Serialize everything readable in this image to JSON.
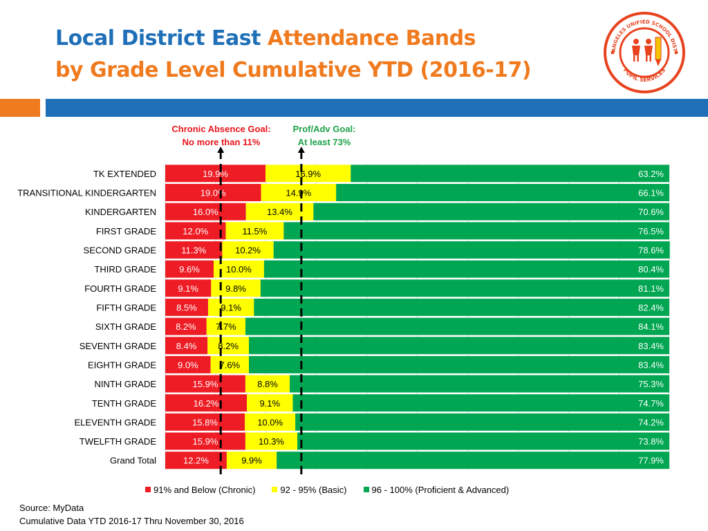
{
  "header": {
    "title_blue": "Local District East",
    "title_orange": "Attendance Bands",
    "subtitle": "by Grade Level Cumulative YTD (2016-17)"
  },
  "logo": {
    "text_top": "LOS ANGELES UNIFIED SCHOOL DISTRICT",
    "text_bottom": "PUPIL SERVICES"
  },
  "goals": {
    "chronic_line1": "Chronic Absence Goal:",
    "chronic_line2": "No more than 11%",
    "prof_line1": "Prof/Adv Goal:",
    "prof_line2": "At least 73%"
  },
  "colors": {
    "chronic": "#ee1c24",
    "basic": "#ffff00",
    "proficient": "#00a651",
    "title_blue": "#1f70b8",
    "title_orange": "#f07a1e"
  },
  "chart_data": {
    "type": "bar",
    "orientation": "horizontal",
    "stacked": true,
    "percent_stacked": true,
    "categories": [
      "TK EXTENDED",
      "TRANSITIONAL KINDERGARTEN",
      "KINDERGARTEN",
      "FIRST GRADE",
      "SECOND GRADE",
      "THIRD GRADE",
      "FOURTH GRADE",
      "FIFTH GRADE",
      "SIXTH GRADE",
      "SEVENTH GRADE",
      "EIGHTH GRADE",
      "NINTH GRADE",
      "TENTH GRADE",
      "ELEVENTH GRADE",
      "TWELFTH GRADE",
      "Grand Total"
    ],
    "series": [
      {
        "name": "91% and Below (Chronic)",
        "color": "#ee1c24",
        "values": [
          19.9,
          19.0,
          16.0,
          12.0,
          11.3,
          9.6,
          9.1,
          8.5,
          8.2,
          8.4,
          9.0,
          15.9,
          16.2,
          15.8,
          15.9,
          12.2
        ],
        "labels": [
          "19.9%",
          "19.0%",
          "16.0%",
          "12.0%",
          "11.3%",
          "9.6%",
          "9.1%",
          "8.5%",
          "8.2%",
          "8.4%",
          "9.0%",
          "15.9%",
          "16.2%",
          "15.8%",
          "15.9%",
          "12.2%"
        ]
      },
      {
        "name": "92 - 95% (Basic)",
        "color": "#ffff00",
        "values": [
          16.9,
          14.9,
          13.4,
          11.5,
          10.2,
          10.0,
          9.8,
          9.1,
          7.7,
          8.2,
          7.6,
          8.8,
          9.1,
          10.0,
          10.3,
          9.9
        ],
        "labels": [
          "16.9%",
          "14.9%",
          "13.4%",
          "11.5%",
          "10.2%",
          "10.0%",
          "9.8%",
          "9.1%",
          "7.7%",
          "8.2%",
          "7.6%",
          "8.8%",
          "9.1%",
          "10.0%",
          "10.3%",
          "9.9%"
        ]
      },
      {
        "name": "96 - 100% (Proficient & Advanced)",
        "color": "#00a651",
        "values": [
          63.2,
          66.1,
          70.6,
          76.5,
          78.6,
          80.4,
          81.1,
          82.4,
          84.1,
          83.4,
          83.4,
          75.3,
          74.7,
          74.2,
          73.8,
          77.9
        ],
        "labels": [
          "63.2%",
          "66.1%",
          "70.6%",
          "76.5%",
          "78.6%",
          "80.4%",
          "81.1%",
          "82.4%",
          "84.1%",
          "83.4%",
          "83.4%",
          "75.3%",
          "74.7%",
          "74.2%",
          "73.8%",
          "77.9%"
        ]
      }
    ],
    "xlim": [
      0,
      100
    ],
    "grid": true,
    "legend_position": "bottom",
    "reference_lines": [
      {
        "name": "Chronic Absence Goal",
        "value": 11
      },
      {
        "name": "Prof/Adv Goal",
        "value": 27
      }
    ]
  },
  "footer": {
    "source": "Source: MyData",
    "note": "Cumulative Data  YTD 2016-17 Thru November 30, 2016"
  }
}
